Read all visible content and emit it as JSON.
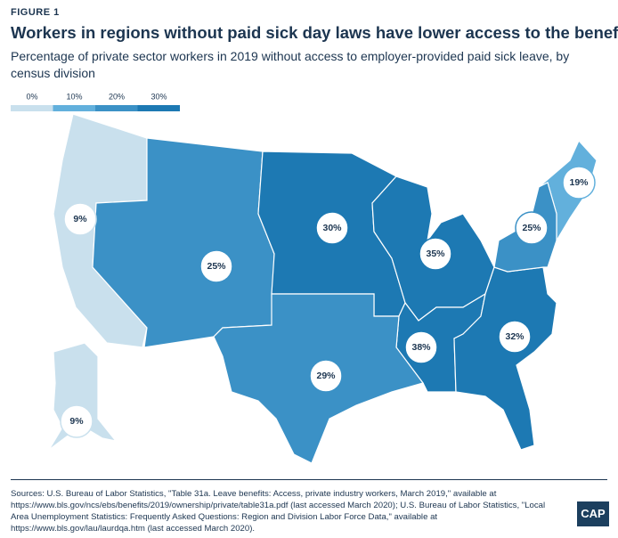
{
  "chart_data": {
    "type": "choropleth",
    "figure_label": "FIGURE 1",
    "title": "Workers in regions without paid sick day laws have lower access to the benefit",
    "subtitle": "Percentage of private sector workers in 2019 without access to employer-provided paid sick leave, by census division",
    "legend_ticks": [
      {
        "value": 0,
        "label": "0%"
      },
      {
        "value": 10,
        "label": "10%"
      },
      {
        "value": 20,
        "label": "20%"
      },
      {
        "value": 30,
        "label": "30%"
      }
    ],
    "colors": [
      "#c9e0ed",
      "#62b0dc",
      "#3b91c6",
      "#1d79b3"
    ],
    "values": [
      9,
      25,
      30,
      35,
      38,
      32,
      29,
      19,
      25,
      9
    ],
    "value_labels": [
      "9%",
      "25%",
      "30%",
      "35%",
      "38%",
      "32%",
      "29%",
      "19%",
      "25%",
      "9%"
    ],
    "sources": "Sources: U.S. Bureau of Labor Statistics, \"Table 31a. Leave benefits: Access, private industry workers, March 2019,\" available at https://www.bls.gov/ncs/ebs/benefits/2019/ownership/private/table31a.pdf (last accessed March 2020); U.S. Bureau of Labor Statistics, \"Local Area Unemployment Statistics: Frequently Asked Questions: Region and Division Labor Force Data,\" available at https://www.bls.gov/lau/laurdqa.htm (last accessed March 2020).",
    "logo": "CAP"
  }
}
